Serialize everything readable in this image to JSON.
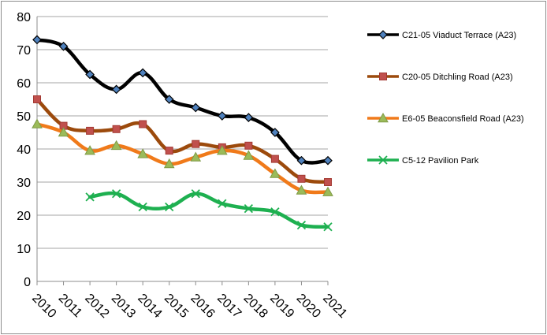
{
  "chart_data": {
    "type": "line",
    "title": "",
    "xlabel": "",
    "ylabel": "",
    "ylim": [
      0,
      80
    ],
    "yticks": [
      0,
      10,
      20,
      30,
      40,
      50,
      60,
      70,
      80
    ],
    "grid": "horizontal",
    "legend_position": "right",
    "x": [
      "2010",
      "2011",
      "2012",
      "2013",
      "2014",
      "2015",
      "2016",
      "2017",
      "2018",
      "2019",
      "2020",
      "2021"
    ],
    "series": [
      {
        "name": "C21-05 Viaduct Terrace (A23)",
        "color": "#000000",
        "marker": "diamond",
        "marker_color": "#4f81bd",
        "values": [
          73,
          71,
          62.5,
          58,
          63,
          55,
          52.5,
          50,
          49.5,
          45,
          36.5,
          36.5
        ]
      },
      {
        "name": "C20-05 Ditchling Road (A23)",
        "color": "#9c4a0c",
        "marker": "square",
        "marker_color": "#c0504d",
        "values": [
          55,
          47,
          45.5,
          46,
          47.5,
          39.5,
          41.5,
          40.5,
          41,
          37,
          31,
          30
        ]
      },
      {
        "name": "E6-05 Beaconsfield Road (A23)",
        "color": "#f07a1a",
        "marker": "triangle",
        "marker_color": "#9bbb59",
        "values": [
          47.5,
          45,
          39.5,
          41,
          38.5,
          35.5,
          37.5,
          39.5,
          38,
          32.5,
          27.5,
          27
        ]
      },
      {
        "name": "C5-12 Pavilion Park",
        "color": "#1eb050",
        "marker": "x",
        "marker_color": "#1eb050",
        "values": [
          null,
          null,
          25.5,
          26.5,
          22.5,
          22.5,
          26.5,
          23.5,
          22,
          21,
          17,
          16.5
        ]
      }
    ]
  }
}
